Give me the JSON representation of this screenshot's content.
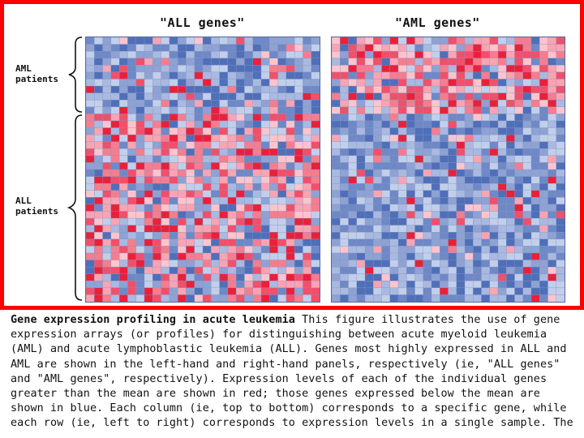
{
  "panels": {
    "all_genes_title": "\"ALL genes\"",
    "aml_genes_title": "\"AML genes\""
  },
  "row_labels": {
    "aml_line1": "AML",
    "aml_line2": "patients",
    "all_line1": "ALL",
    "all_line2": "patients"
  },
  "caption": {
    "heading": "Gene expression profiling in acute leukemia",
    "body": " This figure illustrates the use of gene expression arrays (or profiles) for distinguishing between acute myeloid leukemia (AML) and acute lymphoblastic leukemia (ALL). Genes most highly expressed in ALL and AML are shown in the left-hand and right-hand panels, respectively (ie, \"ALL genes\" and \"AML genes\", respectively). Expression levels of each of the individual genes greater than the mean are shown in red; those genes expressed below the mean are shown in blue. Each column (ie, top to bottom) corresponds to a specific gene, while each row (ie, left to right) corresponds to expression levels in a single sample. The"
  },
  "colors": {
    "frame_border": "#ff0000",
    "high_expression": "#e8213a",
    "low_expression": "#4f6fb8",
    "mean_expression": "#a9b9e0"
  }
}
